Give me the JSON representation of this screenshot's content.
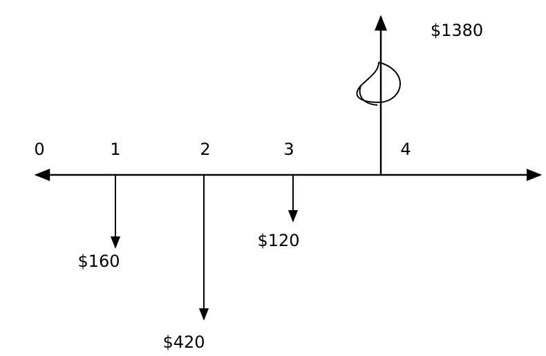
{
  "cash_flow_diagram": {
    "periods": [
      "0",
      "1",
      "2",
      "3",
      "4"
    ],
    "flows": [
      {
        "period": "1",
        "direction": "out",
        "label": "$160",
        "amount": 160
      },
      {
        "period": "2",
        "direction": "out",
        "label": "$420",
        "amount": 420
      },
      {
        "period": "3",
        "direction": "out",
        "label": "$120",
        "amount": 120
      },
      {
        "period": "4",
        "direction": "in",
        "label": "$1380",
        "amount": 1380
      }
    ],
    "colors": {
      "ink": "#000000",
      "background": "#ffffff"
    }
  }
}
